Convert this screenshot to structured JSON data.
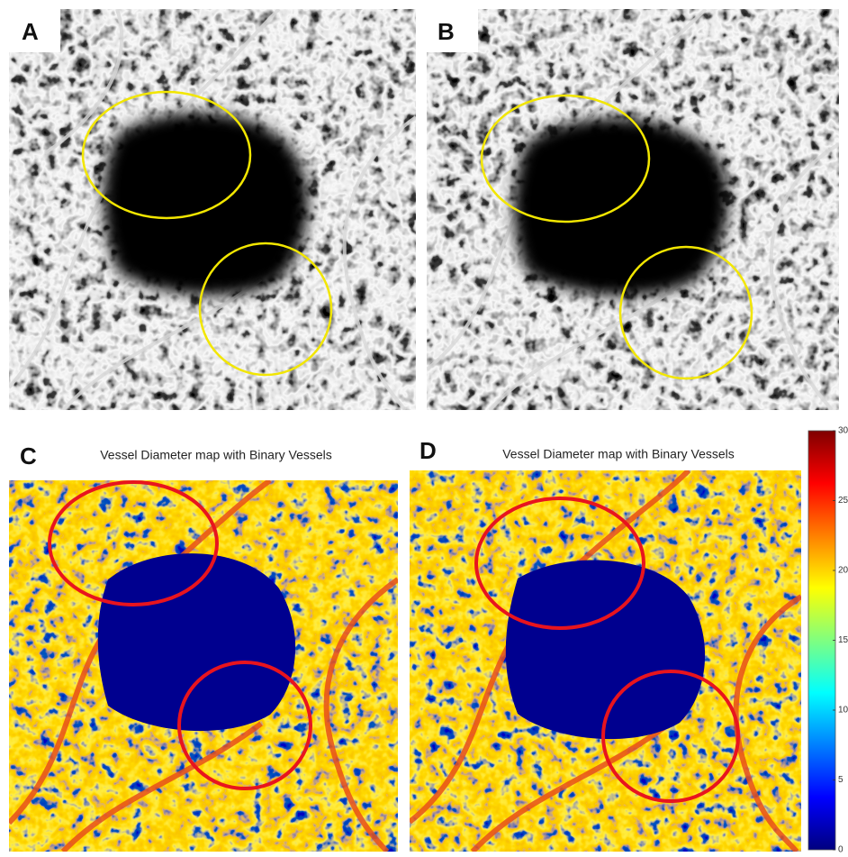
{
  "panels": [
    {
      "label": "A"
    },
    {
      "label": "B"
    },
    {
      "label": "C",
      "title": "Vessel Diameter map with Binary Vessels"
    },
    {
      "label": "D",
      "title": "Vessel Diameter map with Binary Vessels"
    }
  ],
  "colorbar": {
    "range": [
      0,
      30
    ],
    "ticks": [
      0,
      5,
      10,
      15,
      20,
      25,
      30
    ]
  }
}
